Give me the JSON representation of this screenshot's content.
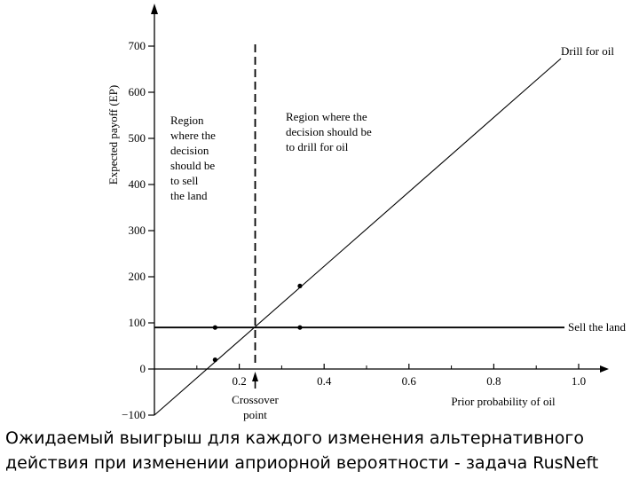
{
  "chart_data": {
    "type": "line",
    "ylabel": "Expected payoff (EP)",
    "xlabel": "Prior probability of oil",
    "xlim": [
      0,
      1.0
    ],
    "ylim": [
      -100,
      700
    ],
    "x_ticks": [
      0.2,
      0.4,
      0.6,
      0.8,
      1.0
    ],
    "x_tick_labels": [
      "0.2",
      "0.4",
      "0.6",
      "0.8",
      "1.0"
    ],
    "x_minor_ticks": [
      0.1,
      0.3,
      0.5,
      0.7,
      0.9
    ],
    "y_ticks": [
      -100,
      0,
      100,
      200,
      300,
      400,
      500,
      600,
      700
    ],
    "y_tick_labels": [
      "−100",
      "0",
      "100",
      "200",
      "300",
      "400",
      "500",
      "600",
      "700"
    ],
    "series": [
      {
        "name": "Drill for oil",
        "x": [
          0,
          1.0
        ],
        "y": [
          -100,
          700
        ]
      },
      {
        "name": "Sell the land",
        "x": [
          0,
          1.0
        ],
        "y": [
          90,
          90
        ]
      }
    ],
    "points": [
      {
        "x": 0.143,
        "y": 20
      },
      {
        "x": 0.143,
        "y": 90
      },
      {
        "x": 0.343,
        "y": 180
      },
      {
        "x": 0.343,
        "y": 90
      }
    ],
    "crossover": {
      "x": 0.2375,
      "label": "Crossover point"
    },
    "annotations": {
      "region_left": [
        "Region",
        "where the",
        "decision",
        "should be",
        "to sell",
        "the land"
      ],
      "region_right": [
        "Region where the",
        "decision should be",
        "to drill for oil"
      ],
      "crossover_label": [
        "Crossover",
        "point"
      ]
    },
    "grid": false,
    "legend": "none"
  },
  "caption": {
    "line1": "Ожидаемый выигрыш для каждого изменения альтернативного",
    "line2": "действия при изменении априорной вероятности - задача RusNeft"
  }
}
